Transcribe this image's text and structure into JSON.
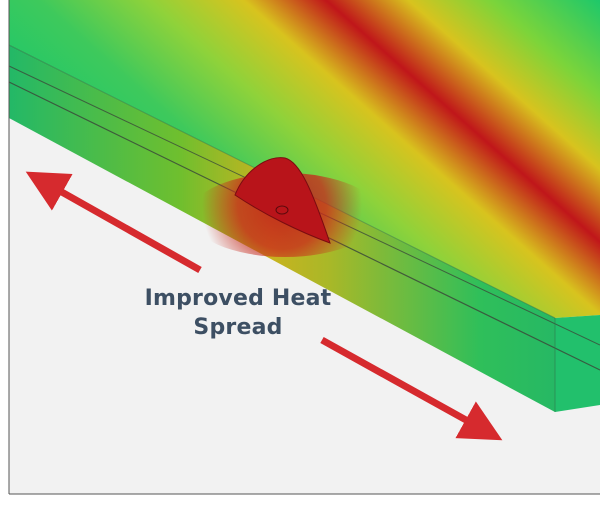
{
  "figure": {
    "caption_line_1": "Improved Heat",
    "caption_line_2": "Spread"
  },
  "colors": {
    "background": "#f2f2f2",
    "hot": "#c0161a",
    "warm": "#e8a51a",
    "mid": "#b8cc1e",
    "cool": "#1ec86a",
    "arrow": "#d62a2e",
    "text": "#3d4f63"
  }
}
